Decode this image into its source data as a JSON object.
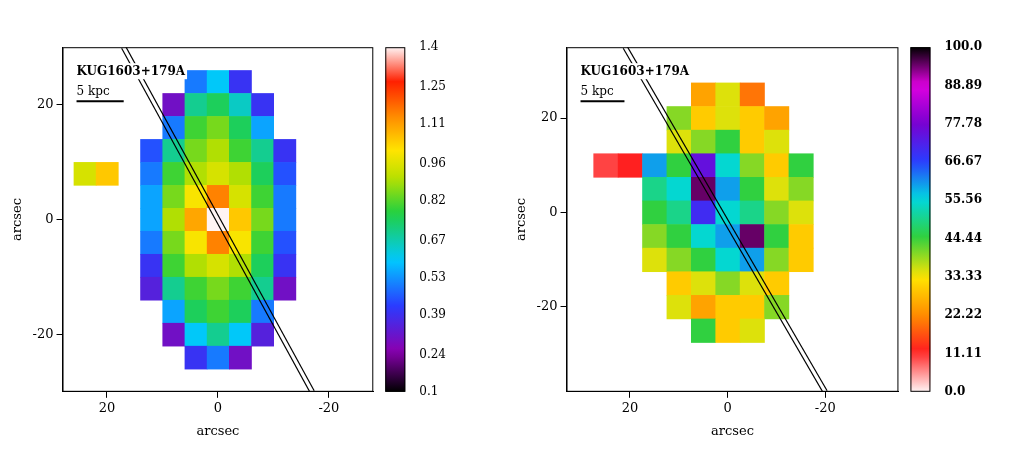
{
  "chart_data": [
    {
      "type": "heatmap",
      "title": "KUG1603+179A",
      "x_label": "arcsec",
      "y_label": "arcsec",
      "xlim": [
        28,
        -28
      ],
      "ylim": [
        -30,
        30
      ],
      "xticks": [
        20,
        0,
        -20
      ],
      "yticks": [
        -20,
        0,
        20
      ],
      "grid": false,
      "cells": {
        "x": [
          24,
          20,
          16,
          12,
          8,
          4,
          0,
          -4,
          -8,
          -12
        ],
        "y": [
          24,
          20,
          16,
          12,
          8,
          4,
          0,
          -4,
          -8,
          -12,
          -16,
          -20,
          -24
        ],
        "values": [
          [
            null,
            null,
            null,
            null,
            null,
            0.5,
            0.6,
            0.4,
            null,
            null
          ],
          [
            null,
            null,
            null,
            null,
            0.3,
            0.7,
            0.75,
            0.65,
            0.4,
            null
          ],
          [
            null,
            null,
            null,
            null,
            0.5,
            0.8,
            0.85,
            0.75,
            0.55,
            null
          ],
          [
            null,
            null,
            null,
            0.45,
            0.7,
            0.85,
            0.9,
            0.8,
            0.7,
            0.4
          ],
          [
            0.95,
            1.05,
            null,
            0.5,
            0.8,
            0.9,
            0.95,
            0.9,
            0.75,
            0.45
          ],
          [
            null,
            null,
            null,
            0.55,
            0.85,
            1.0,
            1.15,
            0.95,
            0.8,
            0.5
          ],
          [
            null,
            null,
            null,
            0.55,
            0.9,
            1.1,
            1.4,
            1.05,
            0.85,
            0.5
          ],
          [
            null,
            null,
            null,
            0.5,
            0.85,
            1.0,
            1.15,
            1.0,
            0.8,
            0.45
          ],
          [
            null,
            null,
            null,
            0.4,
            0.8,
            0.9,
            0.95,
            0.9,
            0.75,
            0.4
          ],
          [
            null,
            null,
            null,
            0.35,
            0.7,
            0.8,
            0.85,
            0.8,
            0.7,
            0.3
          ],
          [
            null,
            null,
            null,
            null,
            0.55,
            0.75,
            0.8,
            0.75,
            0.5,
            null
          ],
          [
            null,
            null,
            null,
            null,
            0.3,
            0.6,
            0.7,
            0.6,
            0.35,
            null
          ],
          [
            null,
            null,
            null,
            null,
            null,
            0.4,
            0.5,
            0.3,
            null,
            null
          ]
        ]
      },
      "colorbar": {
        "range": [
          0.1,
          1.4
        ],
        "ticks": [
          0.1,
          0.24,
          0.39,
          0.53,
          0.67,
          0.82,
          0.96,
          1.11,
          1.25,
          1.4
        ]
      },
      "slit": {
        "x": [
          17,
          -17
        ],
        "y": [
          30,
          -30
        ]
      },
      "scale_bar": {
        "label": "5 kpc",
        "length": 8.5
      }
    },
    {
      "type": "heatmap",
      "title": "KUG1603+179A",
      "x_label": "arcsec",
      "y_label": "arcsec",
      "xlim": [
        33,
        -35
      ],
      "ylim": [
        -38,
        35
      ],
      "xticks": [
        20,
        0,
        -20
      ],
      "yticks": [
        -20,
        0,
        20
      ],
      "grid": false,
      "cells": {
        "x": [
          25,
          20,
          15,
          10,
          5,
          0,
          -5,
          -10,
          -15
        ],
        "y": [
          25,
          20,
          15,
          10,
          5,
          0,
          -5,
          -10,
          -15,
          -20,
          -25
        ],
        "values": [
          [
            null,
            null,
            null,
            null,
            25,
            35,
            20,
            null,
            null
          ],
          [
            null,
            null,
            null,
            40,
            30,
            35,
            30,
            25,
            null
          ],
          [
            null,
            null,
            null,
            35,
            40,
            45,
            30,
            35,
            null
          ],
          [
            10,
            12,
            60,
            45,
            75,
            55,
            40,
            30,
            45
          ],
          [
            null,
            null,
            50,
            55,
            95,
            60,
            45,
            35,
            40
          ],
          [
            null,
            null,
            45,
            50,
            70,
            55,
            50,
            40,
            35
          ],
          [
            null,
            null,
            40,
            45,
            55,
            60,
            95,
            45,
            30
          ],
          [
            null,
            null,
            35,
            40,
            45,
            55,
            60,
            40,
            30
          ],
          [
            null,
            null,
            null,
            30,
            35,
            40,
            35,
            30,
            null
          ],
          [
            null,
            null,
            null,
            35,
            25,
            30,
            30,
            40,
            null
          ],
          [
            null,
            null,
            null,
            null,
            45,
            30,
            35,
            null,
            null
          ]
        ]
      },
      "colorbar": {
        "range": [
          0,
          100
        ],
        "ticks": [
          {
            "value": 0,
            "label": "0.0"
          },
          11.11,
          22.22,
          33.33,
          44.44,
          55.56,
          66.67,
          77.78,
          88.89,
          {
            "value": 100,
            "label": "100.0"
          }
        ]
      },
      "slit": {
        "x": [
          21,
          -20
        ],
        "y": [
          35,
          -38
        ]
      },
      "scale_bar": {
        "label": "5 kpc",
        "length": 9
      }
    }
  ]
}
